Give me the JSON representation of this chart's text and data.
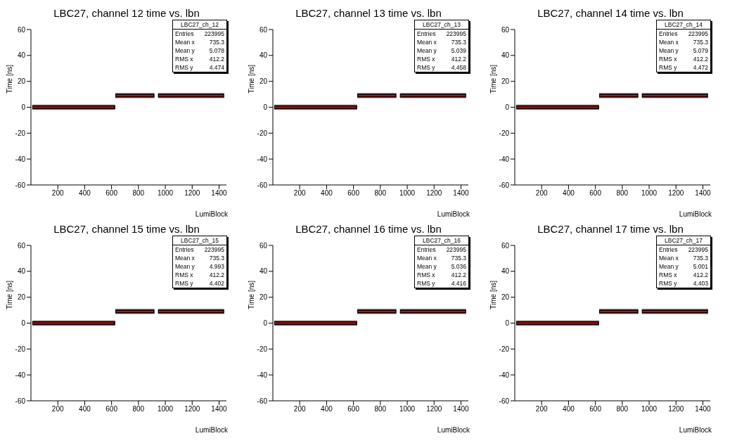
{
  "chart_data": [
    {
      "type": "line",
      "title": "LBC27, channel 12 time vs. lbn",
      "xlabel": "LumiBlock",
      "ylabel": "Time [ns]",
      "xlim": [
        0,
        1455
      ],
      "xticks": [
        200,
        400,
        600,
        800,
        1000,
        1200,
        1400
      ],
      "ylim": [
        -60,
        60
      ],
      "yticks": [
        -60,
        -40,
        -20,
        0,
        20,
        40,
        60
      ],
      "marker": "none",
      "series": [
        {
          "color": "#000000",
          "x": [
            10,
            627
          ],
          "values": [
            0,
            0
          ],
          "lower": [
            -2,
            -2
          ],
          "upper": [
            2,
            2
          ]
        },
        {
          "color": "#000000",
          "x": [
            628,
            919
          ],
          "values": [
            9,
            9
          ],
          "lower": [
            7,
            7
          ],
          "upper": [
            11,
            11
          ]
        },
        {
          "color": "#000000",
          "x": [
            946,
            1438
          ],
          "values": [
            9,
            9
          ],
          "lower": [
            7,
            7
          ],
          "upper": [
            11,
            11
          ]
        },
        {
          "color": "#e00000",
          "x": [
            15,
            620
          ],
          "values": [
            0,
            0
          ]
        },
        {
          "color": "#e00000",
          "x": [
            635,
            912
          ],
          "values": [
            9,
            9
          ]
        },
        {
          "color": "#e00000",
          "x": [
            952,
            1432
          ],
          "values": [
            9,
            9
          ]
        }
      ],
      "grid": false,
      "legend": false,
      "annotations": [
        "LBC27_ch_12",
        "Entries",
        "223995",
        "Mean x",
        "735.3",
        "Mean y",
        "5.078",
        "RMS x",
        "412.2",
        "RMS y",
        "4.474"
      ]
    },
    {
      "type": "line",
      "title": "LBC27, channel 13 time vs. lbn",
      "xlabel": "LumiBlock",
      "ylabel": "Time [ns]",
      "xlim": [
        0,
        1455
      ],
      "xticks": [
        200,
        400,
        600,
        800,
        1000,
        1200,
        1400
      ],
      "ylim": [
        -60,
        60
      ],
      "yticks": [
        -60,
        -40,
        -20,
        0,
        20,
        40,
        60
      ],
      "marker": "none",
      "series": [
        {
          "color": "#000000",
          "x": [
            10,
            627
          ],
          "values": [
            0,
            0
          ],
          "lower": [
            -2,
            -2
          ],
          "upper": [
            2,
            2
          ]
        },
        {
          "color": "#000000",
          "x": [
            628,
            919
          ],
          "values": [
            9,
            9
          ],
          "lower": [
            7,
            7
          ],
          "upper": [
            11,
            11
          ]
        },
        {
          "color": "#000000",
          "x": [
            946,
            1438
          ],
          "values": [
            9,
            9
          ],
          "lower": [
            7,
            7
          ],
          "upper": [
            11,
            11
          ]
        },
        {
          "color": "#e00000",
          "x": [
            15,
            620
          ],
          "values": [
            0,
            0
          ]
        },
        {
          "color": "#e00000",
          "x": [
            635,
            912
          ],
          "values": [
            9,
            9
          ]
        },
        {
          "color": "#e00000",
          "x": [
            952,
            1432
          ],
          "values": [
            9,
            9
          ]
        }
      ],
      "grid": false,
      "legend": false,
      "annotations": [
        "LBC27_ch_13",
        "Entries",
        "223995",
        "Mean x",
        "735.3",
        "Mean y",
        "5.039",
        "RMS x",
        "412.2",
        "RMS y",
        "4.458"
      ]
    },
    {
      "type": "line",
      "title": "LBC27, channel 14 time vs. lbn",
      "xlabel": "LumiBlock",
      "ylabel": "Time [ns]",
      "xlim": [
        0,
        1455
      ],
      "xticks": [
        200,
        400,
        600,
        800,
        1000,
        1200,
        1400
      ],
      "ylim": [
        -60,
        60
      ],
      "yticks": [
        -60,
        -40,
        -20,
        0,
        20,
        40,
        60
      ],
      "marker": "none",
      "series": [
        {
          "color": "#000000",
          "x": [
            10,
            627
          ],
          "values": [
            0,
            0
          ],
          "lower": [
            -2,
            -2
          ],
          "upper": [
            2,
            2
          ]
        },
        {
          "color": "#000000",
          "x": [
            628,
            919
          ],
          "values": [
            9,
            9
          ],
          "lower": [
            7,
            7
          ],
          "upper": [
            11,
            11
          ]
        },
        {
          "color": "#000000",
          "x": [
            946,
            1438
          ],
          "values": [
            9,
            9
          ],
          "lower": [
            7,
            7
          ],
          "upper": [
            11,
            11
          ]
        },
        {
          "color": "#e00000",
          "x": [
            15,
            620
          ],
          "values": [
            0,
            0
          ]
        },
        {
          "color": "#e00000",
          "x": [
            635,
            912
          ],
          "values": [
            9,
            9
          ]
        },
        {
          "color": "#e00000",
          "x": [
            952,
            1432
          ],
          "values": [
            9,
            9
          ]
        }
      ],
      "grid": false,
      "legend": false,
      "annotations": [
        "LBC27_ch_14",
        "Entries",
        "223995",
        "Mean x",
        "735.3",
        "Mean y",
        "5.079",
        "RMS x",
        "412.2",
        "RMS y",
        "4.472"
      ]
    },
    {
      "type": "line",
      "title": "LBC27, channel 15 time vs. lbn",
      "xlabel": "LumiBlock",
      "ylabel": "Time [ns]",
      "xlim": [
        0,
        1455
      ],
      "xticks": [
        200,
        400,
        600,
        800,
        1000,
        1200,
        1400
      ],
      "ylim": [
        -60,
        60
      ],
      "yticks": [
        -60,
        -40,
        -20,
        0,
        20,
        40,
        60
      ],
      "marker": "none",
      "series": [
        {
          "color": "#000000",
          "x": [
            10,
            627
          ],
          "values": [
            0,
            0
          ],
          "lower": [
            -2,
            -2
          ],
          "upper": [
            2,
            2
          ]
        },
        {
          "color": "#000000",
          "x": [
            628,
            919
          ],
          "values": [
            9,
            9
          ],
          "lower": [
            7,
            7
          ],
          "upper": [
            11,
            11
          ]
        },
        {
          "color": "#000000",
          "x": [
            946,
            1438
          ],
          "values": [
            9,
            9
          ],
          "lower": [
            7,
            7
          ],
          "upper": [
            11,
            11
          ]
        },
        {
          "color": "#e00000",
          "x": [
            15,
            620
          ],
          "values": [
            0,
            0
          ]
        },
        {
          "color": "#e00000",
          "x": [
            635,
            912
          ],
          "values": [
            9,
            9
          ]
        },
        {
          "color": "#e00000",
          "x": [
            952,
            1432
          ],
          "values": [
            9,
            9
          ]
        }
      ],
      "grid": false,
      "legend": false,
      "annotations": [
        "LBC27_ch_15",
        "Entries",
        "223995",
        "Mean x",
        "735.3",
        "Mean y",
        "4.993",
        "RMS x",
        "412.2",
        "RMS y",
        "4.402"
      ]
    },
    {
      "type": "line",
      "title": "LBC27, channel 16 time vs. lbn",
      "xlabel": "LumiBlock",
      "ylabel": "Time [ns]",
      "xlim": [
        0,
        1455
      ],
      "xticks": [
        200,
        400,
        600,
        800,
        1000,
        1200,
        1400
      ],
      "ylim": [
        -60,
        60
      ],
      "yticks": [
        -60,
        -40,
        -20,
        0,
        20,
        40,
        60
      ],
      "marker": "none",
      "series": [
        {
          "color": "#000000",
          "x": [
            10,
            627
          ],
          "values": [
            0,
            0
          ],
          "lower": [
            -2,
            -2
          ],
          "upper": [
            2,
            2
          ]
        },
        {
          "color": "#000000",
          "x": [
            628,
            919
          ],
          "values": [
            9,
            9
          ],
          "lower": [
            7,
            7
          ],
          "upper": [
            11,
            11
          ]
        },
        {
          "color": "#000000",
          "x": [
            946,
            1438
          ],
          "values": [
            9,
            9
          ],
          "lower": [
            7,
            7
          ],
          "upper": [
            11,
            11
          ]
        },
        {
          "color": "#e00000",
          "x": [
            15,
            620
          ],
          "values": [
            0,
            0
          ]
        },
        {
          "color": "#e00000",
          "x": [
            635,
            912
          ],
          "values": [
            9,
            9
          ]
        },
        {
          "color": "#e00000",
          "x": [
            952,
            1432
          ],
          "values": [
            9,
            9
          ]
        }
      ],
      "grid": false,
      "legend": false,
      "annotations": [
        "LBC27_ch_16",
        "Entries",
        "223995",
        "Mean x",
        "735.3",
        "Mean y",
        "5.036",
        "RMS x",
        "412.2",
        "RMS y",
        "4.416"
      ]
    },
    {
      "type": "line",
      "title": "LBC27, channel 17 time vs. lbn",
      "xlabel": "LumiBlock",
      "ylabel": "Time [ns]",
      "xlim": [
        0,
        1455
      ],
      "xticks": [
        200,
        400,
        600,
        800,
        1000,
        1200,
        1400
      ],
      "ylim": [
        -60,
        60
      ],
      "yticks": [
        -60,
        -40,
        -20,
        0,
        20,
        40,
        60
      ],
      "marker": "none",
      "series": [
        {
          "color": "#000000",
          "x": [
            10,
            627
          ],
          "values": [
            0,
            0
          ],
          "lower": [
            -2,
            -2
          ],
          "upper": [
            2,
            2
          ]
        },
        {
          "color": "#000000",
          "x": [
            628,
            919
          ],
          "values": [
            9,
            9
          ],
          "lower": [
            7,
            7
          ],
          "upper": [
            11,
            11
          ]
        },
        {
          "color": "#000000",
          "x": [
            946,
            1438
          ],
          "values": [
            9,
            9
          ],
          "lower": [
            7,
            7
          ],
          "upper": [
            11,
            11
          ]
        },
        {
          "color": "#e00000",
          "x": [
            15,
            620
          ],
          "values": [
            0,
            0
          ]
        },
        {
          "color": "#e00000",
          "x": [
            635,
            912
          ],
          "values": [
            9,
            9
          ]
        },
        {
          "color": "#e00000",
          "x": [
            952,
            1432
          ],
          "values": [
            9,
            9
          ]
        }
      ],
      "grid": false,
      "legend": false,
      "annotations": [
        "LBC27_ch_17",
        "Entries",
        "223995",
        "Mean x",
        "735.3",
        "Mean y",
        "5.001",
        "RMS x",
        "412.2",
        "RMS y",
        "4.403"
      ]
    }
  ]
}
